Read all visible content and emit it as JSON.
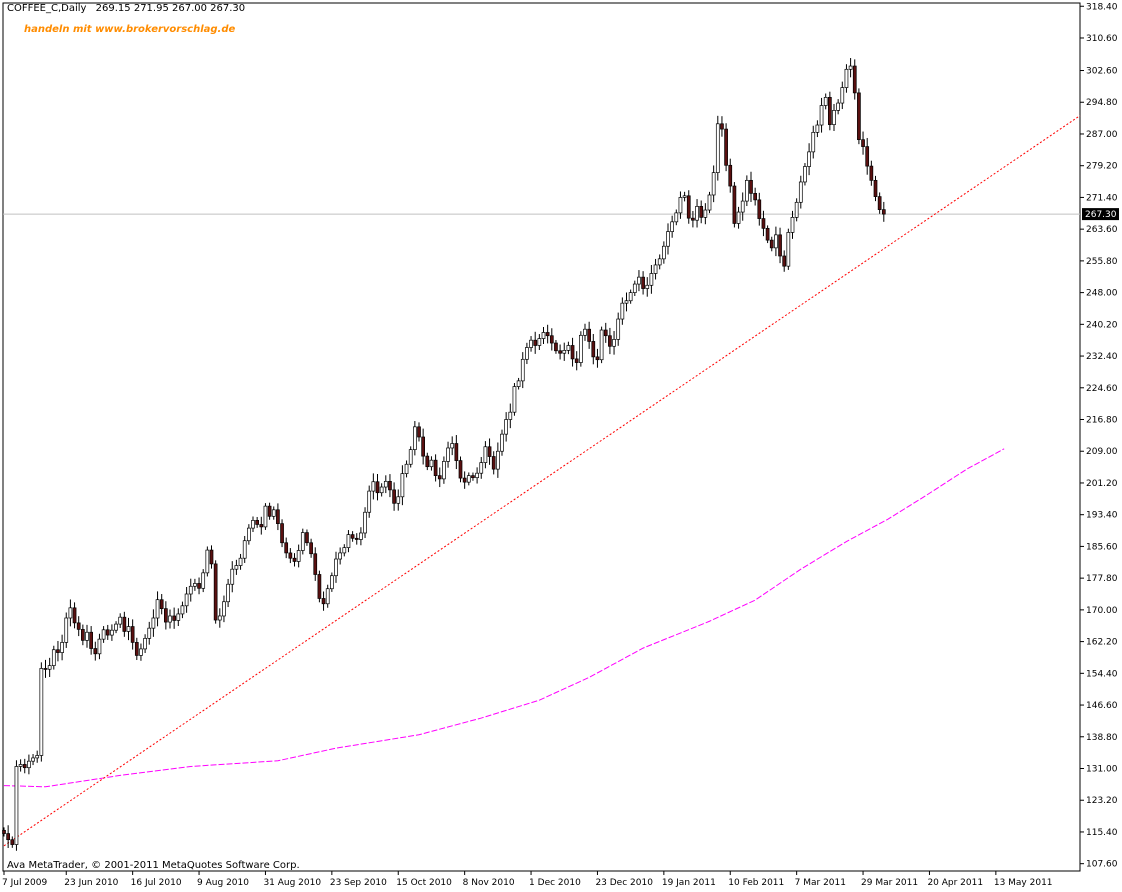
{
  "header": {
    "symbol_label": "COFFEE_C,Daily",
    "ohlc": "269.15 271.95 267.00 267.30"
  },
  "promo_text": "handeln mit www.brokervorschlag.de",
  "copyright": "Ava MetaTrader, © 2001-2011 MetaQuotes Software Corp.",
  "colors": {
    "background": "#ffffff",
    "frame": "#000000",
    "bull_body": "#ffffff",
    "bear_body": "#5a1010",
    "candle_outline": "#000000",
    "trendline": "#ff0000",
    "moving_average": "#ff00ff",
    "current_price_line": "#c0c0c0"
  },
  "chart_data": {
    "type": "candlestick",
    "symbol": "COFFEE_C",
    "timeframe": "Daily",
    "current_price": 267.3,
    "current_price_label": "267.30",
    "y_range": [
      105.8,
      319.2
    ],
    "y_ticks": [
      {
        "value": 318.4,
        "label": "318.40"
      },
      {
        "value": 310.6,
        "label": "310.60"
      },
      {
        "value": 302.6,
        "label": "302.60"
      },
      {
        "value": 294.8,
        "label": "294.80"
      },
      {
        "value": 287.0,
        "label": "287.00"
      },
      {
        "value": 279.2,
        "label": "279.20"
      },
      {
        "value": 271.4,
        "label": "271.40"
      },
      {
        "value": 263.6,
        "label": "263.60"
      },
      {
        "value": 255.8,
        "label": "255.80"
      },
      {
        "value": 248.0,
        "label": "248.00"
      },
      {
        "value": 240.2,
        "label": "240.20"
      },
      {
        "value": 232.4,
        "label": "232.40"
      },
      {
        "value": 224.6,
        "label": "224.60"
      },
      {
        "value": 216.8,
        "label": "216.80"
      },
      {
        "value": 209.0,
        "label": "209.00"
      },
      {
        "value": 201.2,
        "label": "201.20"
      },
      {
        "value": 193.4,
        "label": "193.40"
      },
      {
        "value": 185.6,
        "label": "185.60"
      },
      {
        "value": 177.8,
        "label": "177.80"
      },
      {
        "value": 170.0,
        "label": "170.00"
      },
      {
        "value": 162.2,
        "label": "162.20"
      },
      {
        "value": 154.4,
        "label": "154.40"
      },
      {
        "value": 146.6,
        "label": "146.60"
      },
      {
        "value": 138.8,
        "label": "138.80"
      },
      {
        "value": 131.0,
        "label": "131.00"
      },
      {
        "value": 123.2,
        "label": "123.20"
      },
      {
        "value": 115.4,
        "label": "115.40"
      },
      {
        "value": 107.6,
        "label": "107.60"
      }
    ],
    "x_range": [
      0,
      230
    ],
    "x_ticks": [
      {
        "bar": 0,
        "label": "7 Jul 2009"
      },
      {
        "bar": 15,
        "label": "23 Jun 2010"
      },
      {
        "bar": 31,
        "label": "16 Jul 2010"
      },
      {
        "bar": 47,
        "label": "9 Aug 2010"
      },
      {
        "bar": 63,
        "label": "31 Aug 2010"
      },
      {
        "bar": 79,
        "label": "23 Sep 2010"
      },
      {
        "bar": 95,
        "label": "15 Oct 2010"
      },
      {
        "bar": 111,
        "label": "8 Nov 2010"
      },
      {
        "bar": 127,
        "label": "1 Dec 2010"
      },
      {
        "bar": 143,
        "label": "23 Dec 2010"
      },
      {
        "bar": 159,
        "label": "19 Jan 2011"
      },
      {
        "bar": 175,
        "label": "10 Feb 2011"
      },
      {
        "bar": 191,
        "label": "7 Mar 2011"
      },
      {
        "bar": 207,
        "label": "29 Mar 2011"
      },
      {
        "bar": 223,
        "label": "20 Apr 2011"
      },
      {
        "bar": 239,
        "label": "13 May 2011"
      }
    ],
    "trendline": {
      "from": [
        0,
        112.0
      ],
      "to": [
        272,
        291.5
      ]
    },
    "moving_average": [
      [
        0,
        126.8
      ],
      [
        10,
        126.5
      ],
      [
        28,
        129.3
      ],
      [
        45,
        131.5
      ],
      [
        66,
        132.9
      ],
      [
        80,
        136.0
      ],
      [
        100,
        139.3
      ],
      [
        115,
        143.4
      ],
      [
        129,
        147.8
      ],
      [
        141,
        153.4
      ],
      [
        154,
        160.6
      ],
      [
        170,
        167.2
      ],
      [
        181,
        172.4
      ],
      [
        192,
        180.0
      ],
      [
        203,
        186.8
      ],
      [
        213,
        192.3
      ],
      [
        222,
        198.0
      ],
      [
        232,
        204.6
      ],
      [
        241,
        209.6
      ]
    ],
    "closes": [
      115.0,
      113.5,
      112.3,
      131.5,
      132.0,
      131.2,
      132.8,
      133.6,
      134.2,
      155.6,
      155.4,
      156.3,
      160.2,
      159.5,
      162.0,
      168.0,
      170.5,
      166.8,
      165.2,
      162.5,
      164.5,
      160.5,
      159.2,
      162.8,
      165.1,
      163.8,
      165.0,
      166.5,
      168.2,
      164.7,
      165.9,
      162.0,
      158.8,
      160.4,
      163.0,
      165.5,
      168.0,
      172.5,
      170.3,
      167.0,
      168.5,
      167.4,
      169.0,
      171.0,
      173.9,
      175.8,
      176.5,
      175.3,
      179.1,
      184.7,
      181.3,
      167.5,
      168.5,
      172.0,
      176.3,
      180.0,
      180.9,
      182.7,
      187.0,
      190.1,
      192.0,
      191.0,
      190.4,
      195.5,
      193.0,
      194.6,
      191.2,
      186.5,
      184.0,
      182.7,
      181.9,
      184.6,
      189.0,
      186.5,
      183.8,
      178.7,
      172.8,
      171.5,
      175.2,
      178.4,
      182.5,
      184.0,
      185.3,
      188.5,
      187.6,
      187.3,
      188.9,
      194.0,
      199.2,
      201.5,
      198.8,
      200.2,
      201.6,
      199.5,
      196.2,
      197.8,
      203.5,
      205.8,
      209.4,
      215.0,
      212.5,
      207.8,
      205.2,
      206.8,
      203.0,
      202.2,
      206.5,
      209.8,
      210.9,
      206.7,
      202.4,
      201.4,
      203.0,
      202.5,
      203.6,
      206.2,
      210.1,
      207.7,
      204.6,
      209.0,
      213.2,
      216.8,
      218.6,
      224.9,
      226.3,
      231.6,
      234.5,
      236.3,
      235.0,
      236.7,
      238.2,
      237.4,
      235.6,
      233.7,
      233.1,
      233.8,
      235.0,
      231.7,
      230.8,
      237.5,
      239.0,
      236.0,
      232.2,
      231.5,
      238.8,
      237.4,
      234.8,
      236.5,
      241.5,
      245.4,
      246.0,
      248.0,
      250.1,
      251.8,
      249.0,
      249.8,
      252.7,
      254.8,
      256.3,
      259.4,
      263.0,
      265.4,
      267.6,
      271.4,
      271.8,
      266.3,
      265.8,
      269.2,
      266.5,
      268.3,
      272.0,
      277.5,
      289.5,
      288.2,
      279.3,
      274.2,
      265.0,
      267.8,
      270.5,
      275.6,
      272.4,
      270.8,
      266.2,
      263.8,
      260.9,
      259.0,
      262.2,
      257.0,
      254.5,
      262.8,
      266.5,
      270.2,
      275.2,
      279.0,
      282.6,
      287.4,
      289.2,
      294.0,
      296.0,
      289.3,
      292.8,
      294.6,
      298.4,
      302.9,
      303.7,
      297.1,
      285.6,
      283.9,
      279.1,
      275.6,
      271.6,
      268.4,
      267.3
    ]
  }
}
